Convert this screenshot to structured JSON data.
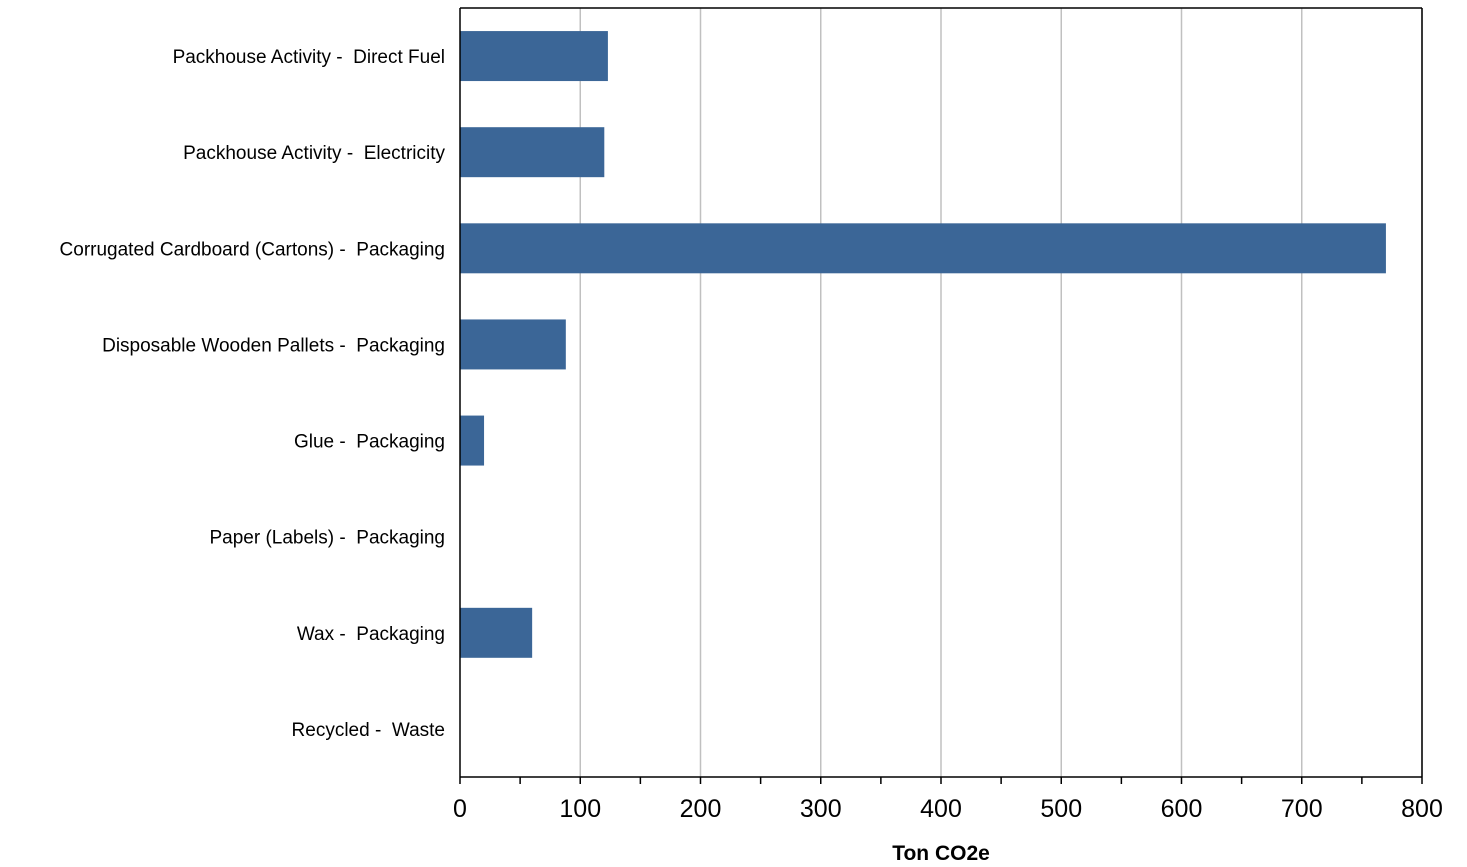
{
  "chart_data": {
    "type": "bar",
    "orientation": "horizontal",
    "categories": [
      "Packhouse Activity -  Direct Fuel",
      "Packhouse Activity -  Electricity",
      "Corrugated Cardboard (Cartons) -  Packaging",
      "Disposable Wooden Pallets -  Packaging",
      "Glue -  Packaging",
      "Paper (Labels) -  Packaging",
      "Wax -  Packaging",
      "Recycled -  Waste"
    ],
    "values": [
      123,
      120,
      770,
      88,
      20,
      0,
      60,
      0
    ],
    "xlabel": "Ton CO2e",
    "xlim": [
      0,
      800
    ],
    "xticks": [
      0,
      100,
      200,
      300,
      400,
      500,
      600,
      700,
      800
    ],
    "grid": "vertical",
    "legend": "none",
    "colors": {
      "bar": "#3B6697",
      "grid": "#C0C0C0",
      "axis": "#000000"
    }
  }
}
